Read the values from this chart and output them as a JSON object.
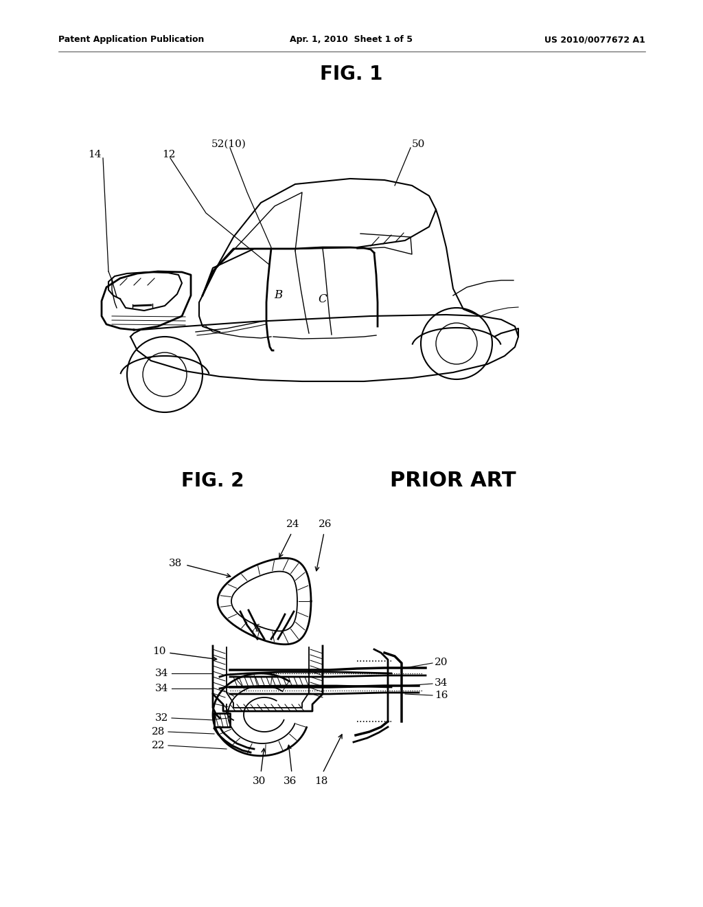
{
  "background_color": "#ffffff",
  "header_left": "Patent Application Publication",
  "header_center": "Apr. 1, 2010  Sheet 1 of 5",
  "header_right": "US 2010/0077672 A1",
  "fig1_title": "FIG. 1",
  "fig2_title": "FIG. 2",
  "fig2_subtitle": "PRIOR ART",
  "header_fontsize": 9,
  "fig_title_fontsize": 18,
  "label_fontsize": 11
}
